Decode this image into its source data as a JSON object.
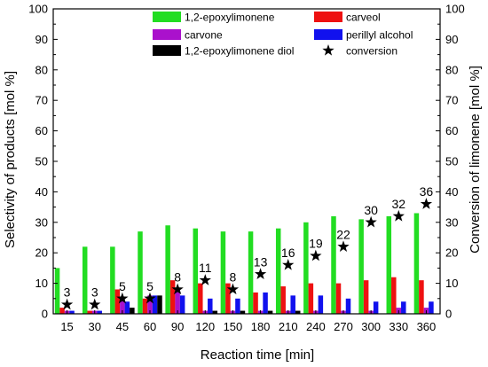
{
  "chart_data": {
    "type": "bar",
    "xlabel": "Reaction time [min]",
    "ylabel": "Selectivity of products [mol %]",
    "ylabel_right": "Conversion of limonene [mol %]",
    "ylim": [
      0,
      100
    ],
    "yticks": [
      0,
      10,
      20,
      30,
      40,
      50,
      60,
      70,
      80,
      90,
      100
    ],
    "categories": [
      "15",
      "30",
      "45",
      "60",
      "90",
      "120",
      "150",
      "180",
      "210",
      "240",
      "270",
      "300",
      "330",
      "360"
    ],
    "series": [
      {
        "name": "1,2-epoxylimonene",
        "color": "#22dd22",
        "values": [
          15,
          22,
          22,
          27,
          29,
          28,
          27,
          27,
          28,
          30,
          32,
          31,
          32,
          33
        ]
      },
      {
        "name": "carveol",
        "color": "#ee1111",
        "values": [
          2,
          1,
          8,
          5,
          11,
          10,
          10,
          7,
          9,
          10,
          10,
          11,
          12,
          11
        ]
      },
      {
        "name": "carvone",
        "color": "#aa11cc",
        "values": [
          1,
          1,
          5,
          6,
          8,
          1,
          1,
          1,
          1,
          1,
          1,
          1,
          2,
          2
        ]
      },
      {
        "name": "perillyl alcohol",
        "color": "#1111ee",
        "values": [
          1,
          1,
          4,
          6,
          6,
          5,
          5,
          7,
          6,
          6,
          5,
          4,
          4,
          4
        ]
      },
      {
        "name": "1,2-epoxylimonene diol",
        "color": "#000000",
        "values": [
          0,
          0,
          2,
          6,
          0,
          1,
          1,
          1,
          1,
          0,
          0,
          0,
          0,
          0
        ]
      }
    ],
    "conversion": {
      "name": "conversion",
      "marker": "star",
      "values": [
        3,
        3,
        5,
        5,
        8,
        11,
        8,
        13,
        16,
        19,
        22,
        30,
        32,
        36
      ],
      "labels": [
        "3",
        "3",
        "5",
        "5",
        "8",
        "11",
        "8",
        "13",
        "16",
        "19",
        "22",
        "30",
        "32",
        "36"
      ]
    },
    "legend": {
      "placement": "top-right",
      "columns": 2
    },
    "grid": false
  }
}
